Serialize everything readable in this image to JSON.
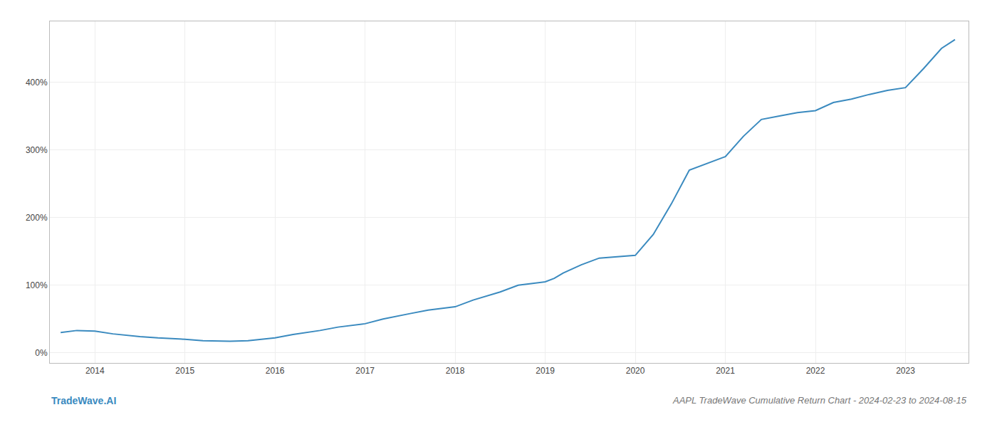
{
  "chart_data": {
    "type": "line",
    "title": "AAPL TradeWave Cumulative Return Chart - 2024-02-23 to 2024-08-15",
    "annotations": [
      "TradeWave.AI"
    ],
    "x": [
      2013.62,
      2013.8,
      2014.0,
      2014.2,
      2014.5,
      2014.7,
      2015.0,
      2015.2,
      2015.5,
      2015.7,
      2016.0,
      2016.2,
      2016.5,
      2016.7,
      2017.0,
      2017.2,
      2017.5,
      2017.7,
      2018.0,
      2018.2,
      2018.5,
      2018.7,
      2019.0,
      2019.1,
      2019.2,
      2019.4,
      2019.6,
      2019.8,
      2020.0,
      2020.2,
      2020.4,
      2020.6,
      2020.8,
      2021.0,
      2021.2,
      2021.4,
      2021.6,
      2021.8,
      2022.0,
      2022.2,
      2022.4,
      2022.6,
      2022.8,
      2023.0,
      2023.2,
      2023.4,
      2023.55
    ],
    "values": [
      30,
      33,
      32,
      28,
      24,
      22,
      20,
      18,
      17,
      18,
      22,
      27,
      33,
      38,
      43,
      50,
      58,
      63,
      68,
      78,
      90,
      100,
      105,
      110,
      118,
      130,
      140,
      142,
      144,
      175,
      220,
      270,
      280,
      290,
      320,
      345,
      350,
      355,
      358,
      370,
      375,
      382,
      388,
      392,
      420,
      450,
      463
    ],
    "color": "#3a8abf",
    "xlim": [
      2013.5,
      2023.7
    ],
    "ylim": [
      -15,
      490
    ],
    "xticks": [
      2014,
      2015,
      2016,
      2017,
      2018,
      2019,
      2020,
      2021,
      2022,
      2023
    ],
    "yticks": [
      {
        "value": 0,
        "label": "0%"
      },
      {
        "value": 100,
        "label": "100%"
      },
      {
        "value": 200,
        "label": "200%"
      },
      {
        "value": 300,
        "label": "300%"
      },
      {
        "value": 400,
        "label": "400%"
      }
    ],
    "grid": true
  }
}
